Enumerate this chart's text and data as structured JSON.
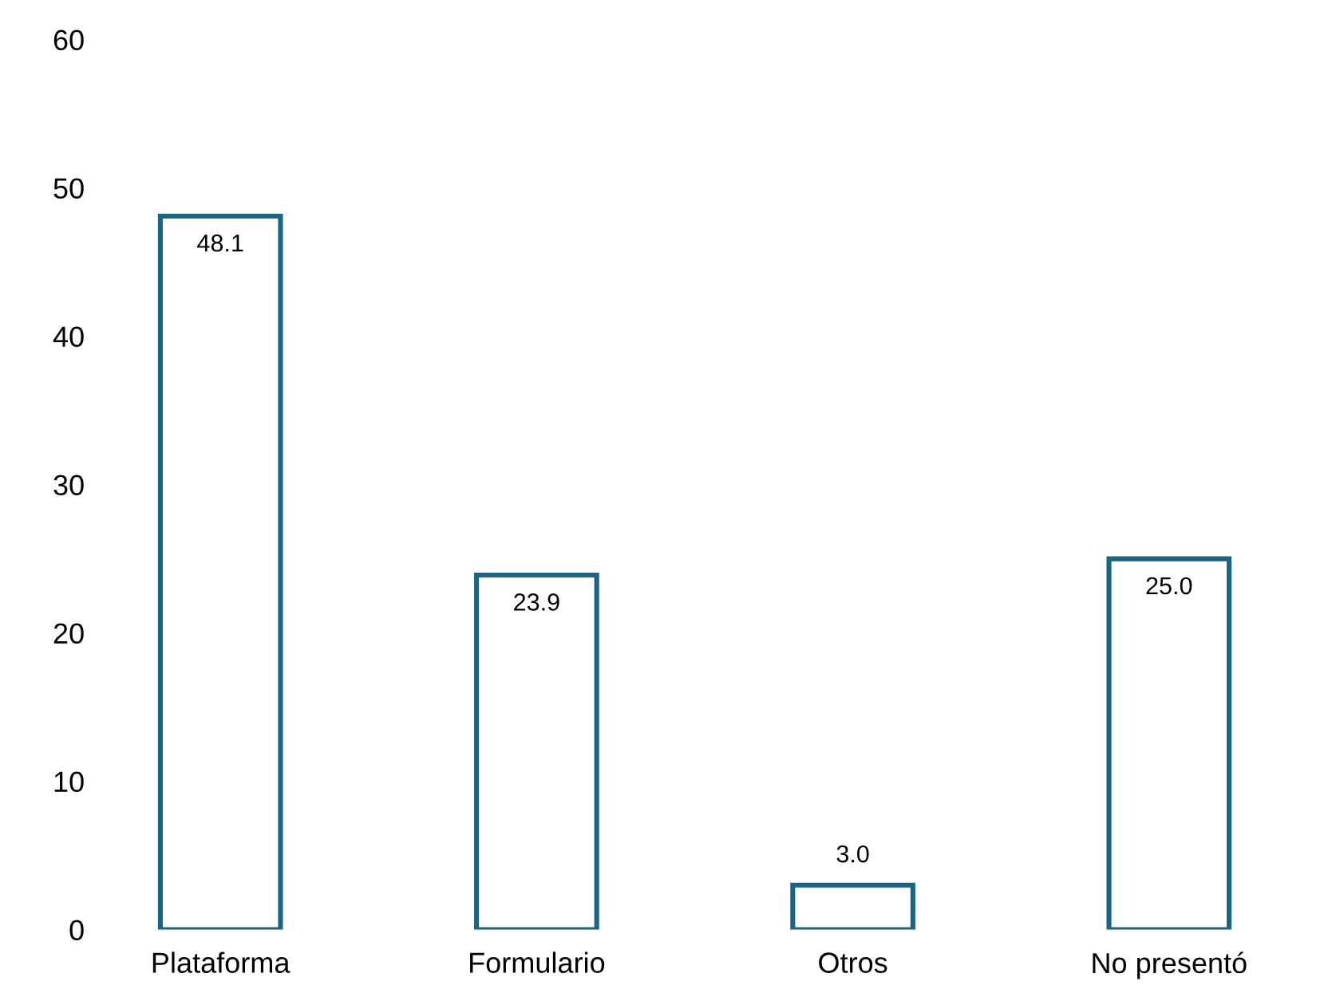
{
  "chart_data": {
    "type": "bar",
    "categories": [
      "Plataforma",
      "Formulario",
      "Otros",
      "No presentó"
    ],
    "values": [
      48.1,
      23.9,
      3.0,
      25.0
    ],
    "color": "#1a6485",
    "ylim": [
      0,
      60
    ],
    "yticks": [
      0,
      10,
      20,
      30,
      40,
      50,
      60
    ],
    "value_labels": [
      "48.1",
      "23.9",
      "3.0",
      "25.0"
    ],
    "grid": false,
    "legend": false
  }
}
